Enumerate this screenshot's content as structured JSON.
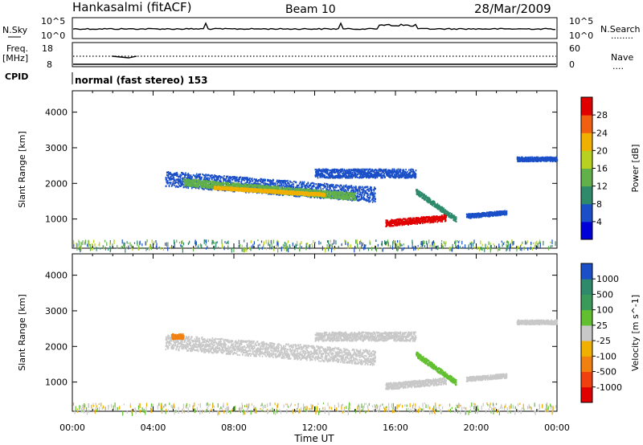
{
  "header": {
    "station": "Hankasalmi (fitACF)",
    "beam": "Beam 10",
    "date": "28/Mar/2009"
  },
  "noise_panel": {
    "left_label": "N.Sky",
    "left_ticks": [
      "10^5",
      "10^0"
    ],
    "right_label": "N.Search",
    "right_ticks": [
      "10^5",
      "10^0"
    ],
    "right_line_sample": "........"
  },
  "freq_panel": {
    "left_label": "Freq.",
    "left_unit": "[MHz]",
    "left_ticks": [
      "18",
      "8"
    ],
    "right_label": "Nave",
    "right_ticks": [
      "60",
      "0"
    ],
    "right_line_sample": "...."
  },
  "cpid_panel": {
    "label": "CPID",
    "mode_text": "normal (fast stereo) 153"
  },
  "x_axis": {
    "label": "Time UT",
    "ticks": [
      "00:00",
      "04:00",
      "08:00",
      "12:00",
      "16:00",
      "20:00",
      "00:00"
    ]
  },
  "chart_data": [
    {
      "type": "heatmap",
      "name": "power-panel",
      "ylabel": "Slant Range [km]",
      "yticks": [
        "1000",
        "2000",
        "3000",
        "4000"
      ],
      "ylim": [
        180,
        4600
      ],
      "xlim_hours": [
        0,
        24
      ],
      "colorbar": {
        "label": "Power [dB]",
        "ticks": [
          "4",
          "8",
          "12",
          "16",
          "20",
          "24",
          "28"
        ],
        "colors": [
          "#0000d8",
          "#1a4fc8",
          "#2e8a6a",
          "#62b04a",
          "#b8d020",
          "#f0b000",
          "#f06010",
          "#e00000"
        ]
      },
      "bands": [
        {
          "t0": 4.6,
          "t1": 15.0,
          "c0": 2150,
          "c1": 1700,
          "width": 420,
          "color": "#1a4fc8"
        },
        {
          "t0": 5.5,
          "t1": 14.0,
          "c0": 2050,
          "c1": 1650,
          "width": 200,
          "color": "#62b04a"
        },
        {
          "t0": 7.0,
          "t1": 12.5,
          "c0": 1900,
          "c1": 1700,
          "width": 90,
          "color": "#f0b000"
        },
        {
          "t0": 12.0,
          "t1": 17.0,
          "c0": 2300,
          "c1": 2300,
          "width": 250,
          "color": "#1a4fc8"
        },
        {
          "t0": 17.0,
          "t1": 19.0,
          "c0": 1800,
          "c1": 1000,
          "width": 150,
          "color": "#2e8a6a"
        },
        {
          "t0": 15.5,
          "t1": 18.5,
          "c0": 900,
          "c1": 1050,
          "width": 180,
          "color": "#e00000"
        },
        {
          "t0": 19.5,
          "t1": 21.5,
          "c0": 1100,
          "c1": 1200,
          "width": 120,
          "color": "#1a4fc8"
        },
        {
          "t0": 22.0,
          "t1": 24.0,
          "c0": 2700,
          "c1": 2700,
          "width": 120,
          "color": "#1a4fc8"
        }
      ]
    },
    {
      "type": "heatmap",
      "name": "velocity-panel",
      "ylabel": "Slant Range [km]",
      "yticks": [
        "1000",
        "2000",
        "3000",
        "4000"
      ],
      "ylim": [
        180,
        4600
      ],
      "xlim_hours": [
        0,
        24
      ],
      "colorbar": {
        "label": "Velocity [m s^-1]",
        "ticks": [
          "1000",
          "500",
          "100",
          "25",
          "-25",
          "-100",
          "-500",
          "-1000"
        ],
        "colors": [
          "#1a4fc8",
          "#2e8a6a",
          "#3a9a5a",
          "#62c030",
          "#c8c8c8",
          "#f0b000",
          "#f08010",
          "#f04010",
          "#e00000"
        ]
      },
      "bands": [
        {
          "t0": 4.6,
          "t1": 15.0,
          "c0": 2150,
          "c1": 1700,
          "width": 420,
          "color": "#c8c8c8"
        },
        {
          "t0": 12.0,
          "t1": 17.0,
          "c0": 2300,
          "c1": 2300,
          "width": 250,
          "color": "#c8c8c8"
        },
        {
          "t0": 17.0,
          "t1": 19.0,
          "c0": 1800,
          "c1": 1000,
          "width": 150,
          "color": "#62c030"
        },
        {
          "t0": 15.5,
          "t1": 18.5,
          "c0": 900,
          "c1": 1050,
          "width": 180,
          "color": "#c8c8c8"
        },
        {
          "t0": 19.5,
          "t1": 21.5,
          "c0": 1100,
          "c1": 1200,
          "width": 120,
          "color": "#c8c8c8"
        },
        {
          "t0": 22.0,
          "t1": 24.0,
          "c0": 2700,
          "c1": 2700,
          "width": 120,
          "color": "#c8c8c8"
        },
        {
          "t0": 4.9,
          "t1": 5.5,
          "c0": 2300,
          "c1": 2300,
          "width": 140,
          "color": "#f08010"
        }
      ]
    }
  ]
}
